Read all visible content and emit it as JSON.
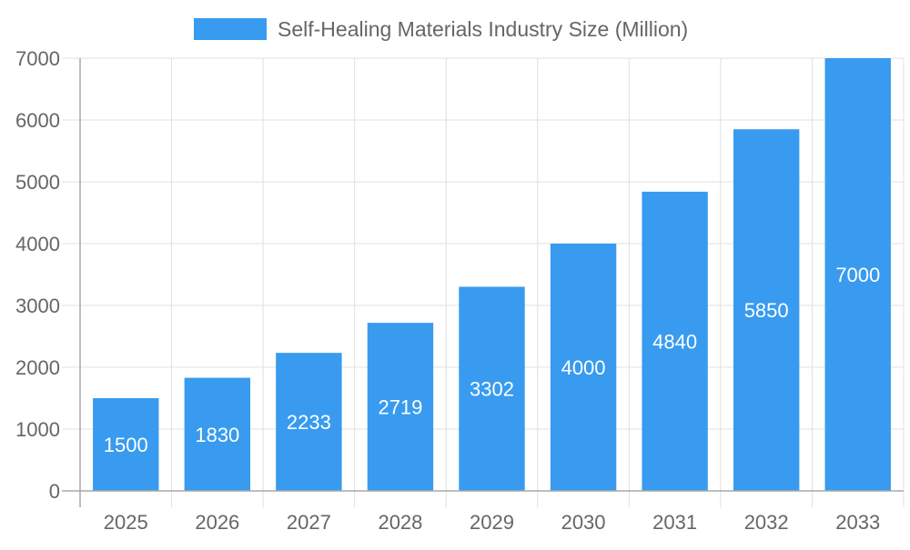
{
  "chart_data": {
    "type": "bar",
    "title": "",
    "xlabel": "",
    "ylabel": "",
    "categories": [
      "2025",
      "2026",
      "2027",
      "2028",
      "2029",
      "2030",
      "2031",
      "2032",
      "2033"
    ],
    "series": [
      {
        "name": "Self-Healing Materials Industry Size (Million)",
        "values": [
          1500,
          1830,
          2233,
          2719,
          3302,
          4000,
          4840,
          5850,
          7000
        ]
      }
    ],
    "ylim": [
      0,
      7000
    ],
    "yticks": [
      0,
      1000,
      2000,
      3000,
      4000,
      5000,
      6000,
      7000
    ],
    "grid": true,
    "legend": "top-center",
    "data_labels": true,
    "colors": {
      "bar": "#389BEF",
      "grid": "#E0E0E0",
      "axis": "#A8A8A8",
      "text": "#666666",
      "label": "#FFFFFF"
    }
  }
}
